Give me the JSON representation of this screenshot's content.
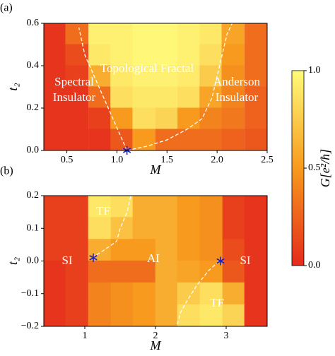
{
  "chart_data": [
    {
      "type": "heatmap",
      "label": "(a)",
      "xlabel": "M",
      "ylabel": "t₂",
      "x": [
        0.38,
        0.6,
        0.83,
        1.05,
        1.27,
        1.5,
        1.72,
        1.94,
        2.16,
        2.39
      ],
      "y": [
        0.55,
        0.45,
        0.35,
        0.25,
        0.15,
        0.05
      ],
      "z": [
        [
          0.05,
          0.3,
          0.95,
          0.95,
          0.98,
          0.98,
          0.95,
          0.9,
          0.55,
          0.3
        ],
        [
          0.05,
          0.15,
          0.9,
          0.95,
          0.98,
          0.98,
          0.95,
          0.85,
          0.5,
          0.3
        ],
        [
          0.05,
          0.1,
          0.6,
          0.9,
          0.95,
          0.95,
          0.92,
          0.75,
          0.45,
          0.3
        ],
        [
          0.05,
          0.05,
          0.3,
          0.85,
          0.9,
          0.9,
          0.85,
          0.55,
          0.4,
          0.25
        ],
        [
          0.05,
          0.05,
          0.1,
          0.5,
          0.85,
          0.8,
          0.5,
          0.4,
          0.35,
          0.25
        ],
        [
          0.05,
          0.05,
          0.05,
          0.2,
          0.5,
          0.3,
          0.3,
          0.3,
          0.25,
          0.2
        ]
      ],
      "xlim": [
        0.27,
        2.5
      ],
      "ylim": [
        0,
        0.6
      ],
      "xticks": [
        0.5,
        {
          "value": 1,
          "label": "1.0"
        },
        1.5,
        {
          "value": 2,
          "label": "2.0"
        },
        2.5
      ],
      "yticks": [
        {
          "value": 0,
          "label": "0.0"
        },
        0.2,
        0.4,
        0.6
      ],
      "boundaries": [
        {
          "x": [
            1.1,
            0.96,
            0.82,
            0.68,
            0.62
          ],
          "y": [
            0,
            0.15,
            0.3,
            0.45,
            0.58
          ]
        },
        {
          "x": [
            1.1,
            1.3,
            1.5,
            1.7,
            1.85,
            1.95,
            2.0,
            2.05,
            2.1,
            2.15
          ],
          "y": [
            0,
            0.02,
            0.05,
            0.1,
            0.15,
            0.25,
            0.35,
            0.45,
            0.55,
            0.6
          ]
        }
      ],
      "markers": {
        "x": [
          1.1
        ],
        "y": [
          0
        ]
      },
      "annotations": [
        [
          "Topological Fractal"
        ],
        [
          "Spectral",
          "Insulator"
        ],
        [
          "Anderson",
          "Insulator"
        ]
      ]
    },
    {
      "type": "heatmap",
      "label": "(b)",
      "xlabel": "M",
      "ylabel": "t₂",
      "x": [
        0.58,
        0.89,
        1.21,
        1.53,
        1.84,
        2.16,
        2.47,
        2.79,
        3.11,
        3.42
      ],
      "y": [
        0.167,
        0.1,
        0.033,
        -0.033,
        -0.1,
        -0.167
      ],
      "z": [
        [
          0.1,
          0.1,
          0.9,
          0.85,
          0.6,
          0.6,
          0.5,
          0.45,
          0.1,
          0.05
        ],
        [
          0.1,
          0.1,
          0.85,
          0.7,
          0.6,
          0.6,
          0.5,
          0.45,
          0.1,
          0.05
        ],
        [
          0.1,
          0.1,
          0.6,
          0.5,
          0.5,
          0.6,
          0.5,
          0.45,
          0.15,
          0.05
        ],
        [
          0.05,
          0.1,
          0.3,
          0.3,
          0.3,
          0.6,
          0.55,
          0.5,
          0.2,
          0.05
        ],
        [
          0.05,
          0.1,
          0.4,
          0.45,
          0.5,
          0.6,
          0.75,
          0.85,
          0.6,
          0.05
        ],
        [
          0.05,
          0.1,
          0.4,
          0.45,
          0.5,
          0.6,
          0.85,
          0.9,
          0.8,
          0.05
        ]
      ],
      "xlim": [
        0.42,
        3.58
      ],
      "ylim": [
        -0.2,
        0.2
      ],
      "xticks": [
        1,
        2,
        3
      ],
      "yticks": [
        {
          "value": -0.2,
          "label": "−0.2"
        },
        {
          "value": -0.1,
          "label": "−0.1"
        },
        {
          "value": 0,
          "label": "0.0"
        },
        0.1,
        0.2
      ],
      "boundaries": [
        {
          "x": [
            1.1,
            1.25,
            1.45,
            1.5,
            1.6,
            1.65
          ],
          "y": [
            0.01,
            0.03,
            0.06,
            0.1,
            0.15,
            0.2
          ]
        },
        {
          "x": [
            2.9,
            2.75,
            2.6,
            2.45,
            2.35,
            2.3
          ],
          "y": [
            0,
            -0.03,
            -0.07,
            -0.12,
            -0.16,
            -0.2
          ]
        }
      ],
      "markers": {
        "x": [
          1.12,
          2.92
        ],
        "y": [
          0.01,
          0
        ]
      },
      "annotations": [
        [
          "TF"
        ],
        [
          "SI"
        ],
        [
          "AI"
        ],
        [
          "SI"
        ],
        [
          "TF"
        ]
      ]
    }
  ],
  "colorbar": {
    "label": "G[e²/ħ]",
    "lim": [
      0,
      1
    ],
    "ticks": [
      {
        "value": 0,
        "label": "0.0"
      },
      0.5,
      {
        "value": 1,
        "label": "1.0"
      }
    ],
    "colormap": [
      "#e42a1c",
      "#f79a1d",
      "#fffb7b"
    ]
  },
  "boundary_color": "#ffffff",
  "marker_color": "#2020c0"
}
